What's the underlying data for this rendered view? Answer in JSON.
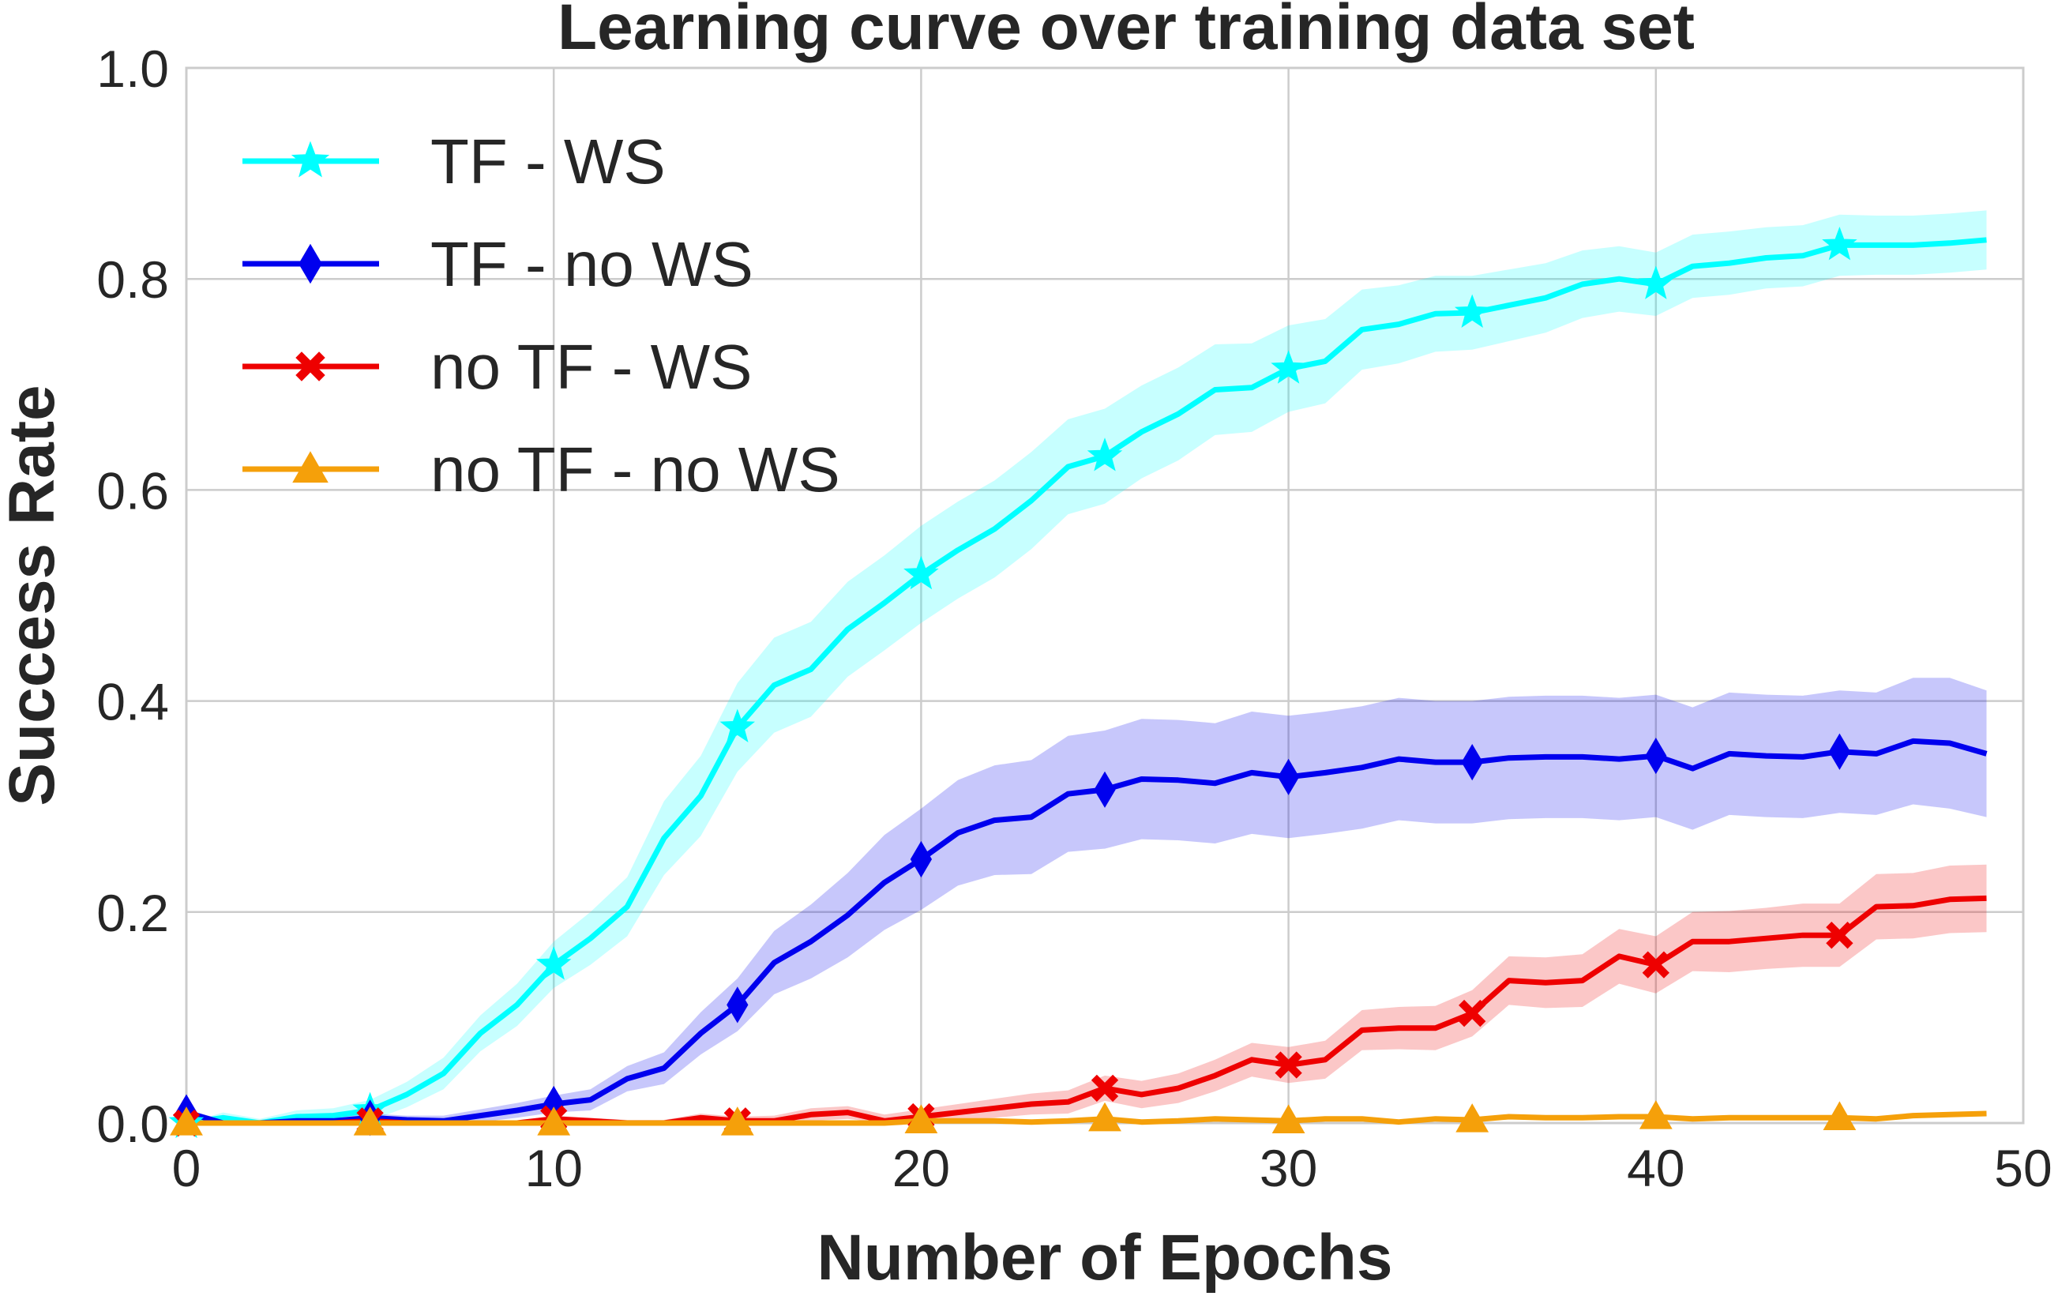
{
  "chart_data": {
    "type": "line",
    "title": "Learning curve over training data set",
    "xlabel": "Number of Epochs",
    "ylabel": "Success Rate",
    "xlim": [
      0,
      50
    ],
    "ylim": [
      0,
      1.0
    ],
    "xticks": [
      "0",
      "10",
      "20",
      "30",
      "40",
      "50"
    ],
    "yticks": [
      "0.0",
      "0.2",
      "0.4",
      "0.6",
      "0.8",
      "1.0"
    ],
    "grid": true,
    "legend_position": "upper-left",
    "x": [
      0,
      1,
      2,
      3,
      4,
      5,
      6,
      7,
      8,
      9,
      10,
      11,
      12,
      13,
      14,
      15,
      16,
      17,
      18,
      19,
      20,
      21,
      22,
      23,
      24,
      25,
      26,
      27,
      28,
      29,
      30,
      31,
      32,
      33,
      34,
      35,
      36,
      37,
      38,
      39,
      40,
      41,
      42,
      43,
      44,
      45,
      46,
      47,
      48,
      49
    ],
    "series": [
      {
        "name": "TF - WS",
        "color": "#00ffff",
        "marker": "star",
        "values": [
          0.0,
          0.005,
          0.0,
          0.006,
          0.007,
          0.012,
          0.027,
          0.047,
          0.085,
          0.112,
          0.15,
          0.175,
          0.205,
          0.27,
          0.31,
          0.375,
          0.415,
          0.43,
          0.468,
          0.493,
          0.52,
          0.543,
          0.563,
          0.59,
          0.622,
          0.632,
          0.655,
          0.672,
          0.695,
          0.697,
          0.715,
          0.722,
          0.752,
          0.757,
          0.767,
          0.768,
          0.775,
          0.782,
          0.795,
          0.8,
          0.795,
          0.812,
          0.815,
          0.82,
          0.822,
          0.832,
          0.832,
          0.832,
          0.834,
          0.837
        ],
        "band": [
          0.0,
          0.005,
          0.004,
          0.006,
          0.007,
          0.01,
          0.012,
          0.015,
          0.017,
          0.02,
          0.022,
          0.025,
          0.028,
          0.035,
          0.038,
          0.042,
          0.045,
          0.045,
          0.045,
          0.045,
          0.046,
          0.046,
          0.046,
          0.046,
          0.045,
          0.045,
          0.044,
          0.044,
          0.043,
          0.042,
          0.041,
          0.04,
          0.038,
          0.037,
          0.036,
          0.035,
          0.034,
          0.033,
          0.032,
          0.031,
          0.03,
          0.03,
          0.03,
          0.029,
          0.029,
          0.029,
          0.028,
          0.028,
          0.028,
          0.028
        ],
        "marker_every": 5
      },
      {
        "name": "TF - no WS",
        "color": "#0000ee",
        "marker": "diamond",
        "values": [
          0.01,
          0.0,
          0.0,
          0.002,
          0.002,
          0.005,
          0.003,
          0.002,
          0.007,
          0.012,
          0.018,
          0.022,
          0.042,
          0.052,
          0.085,
          0.112,
          0.152,
          0.172,
          0.197,
          0.228,
          0.25,
          0.275,
          0.287,
          0.29,
          0.312,
          0.316,
          0.326,
          0.325,
          0.322,
          0.332,
          0.328,
          0.332,
          0.337,
          0.345,
          0.342,
          0.342,
          0.346,
          0.347,
          0.347,
          0.345,
          0.348,
          0.336,
          0.35,
          0.348,
          0.347,
          0.352,
          0.35,
          0.362,
          0.36,
          0.35
        ],
        "band": [
          0.003,
          0.003,
          0.003,
          0.003,
          0.003,
          0.004,
          0.004,
          0.005,
          0.006,
          0.007,
          0.008,
          0.01,
          0.012,
          0.015,
          0.02,
          0.025,
          0.03,
          0.035,
          0.04,
          0.045,
          0.048,
          0.05,
          0.052,
          0.054,
          0.055,
          0.056,
          0.057,
          0.057,
          0.057,
          0.058,
          0.058,
          0.058,
          0.058,
          0.058,
          0.058,
          0.058,
          0.058,
          0.058,
          0.058,
          0.058,
          0.058,
          0.058,
          0.058,
          0.058,
          0.058,
          0.058,
          0.058,
          0.06,
          0.062,
          0.06
        ],
        "marker_every": 5
      },
      {
        "name": "no TF - WS",
        "color": "#ee0000",
        "marker": "x",
        "values": [
          0.0,
          0.0,
          0.0,
          0.0,
          0.0,
          0.002,
          0.0,
          0.0,
          0.0,
          0.0,
          0.004,
          0.002,
          0.0,
          0.0,
          0.005,
          0.002,
          0.002,
          0.008,
          0.01,
          0.002,
          0.006,
          0.01,
          0.014,
          0.018,
          0.02,
          0.033,
          0.027,
          0.033,
          0.045,
          0.06,
          0.055,
          0.06,
          0.088,
          0.09,
          0.09,
          0.104,
          0.135,
          0.133,
          0.135,
          0.158,
          0.15,
          0.172,
          0.172,
          0.175,
          0.178,
          0.178,
          0.205,
          0.206,
          0.212,
          0.213
        ],
        "band": [
          0.0,
          0.0,
          0.0,
          0.0,
          0.0,
          0.002,
          0.002,
          0.002,
          0.002,
          0.002,
          0.003,
          0.003,
          0.003,
          0.003,
          0.004,
          0.004,
          0.005,
          0.006,
          0.006,
          0.006,
          0.007,
          0.008,
          0.009,
          0.01,
          0.011,
          0.012,
          0.013,
          0.014,
          0.015,
          0.016,
          0.017,
          0.018,
          0.019,
          0.02,
          0.021,
          0.022,
          0.023,
          0.024,
          0.025,
          0.026,
          0.027,
          0.028,
          0.029,
          0.029,
          0.03,
          0.03,
          0.031,
          0.031,
          0.032,
          0.032
        ],
        "marker_every": 5
      },
      {
        "name": "no TF - no WS",
        "color": "#f5a00a",
        "marker": "triangle",
        "values": [
          0.0,
          0.0,
          0.0,
          0.0,
          0.0,
          0.0,
          0.0,
          0.0,
          0.0,
          0.0,
          0.0,
          0.0,
          0.0,
          0.0,
          0.0,
          0.0,
          0.0,
          0.0,
          0.0,
          0.0,
          0.002,
          0.002,
          0.002,
          0.001,
          0.002,
          0.004,
          0.001,
          0.002,
          0.004,
          0.003,
          0.002,
          0.004,
          0.004,
          0.001,
          0.004,
          0.003,
          0.006,
          0.005,
          0.005,
          0.006,
          0.006,
          0.004,
          0.005,
          0.005,
          0.005,
          0.005,
          0.004,
          0.007,
          0.008,
          0.009
        ],
        "band": [
          0.0,
          0.0,
          0.0,
          0.0,
          0.0,
          0.0,
          0.0,
          0.0,
          0.0,
          0.0,
          0.0,
          0.0,
          0.0,
          0.0,
          0.0,
          0.0,
          0.0,
          0.0,
          0.0,
          0.0,
          0.002,
          0.002,
          0.002,
          0.002,
          0.002,
          0.002,
          0.002,
          0.002,
          0.002,
          0.002,
          0.002,
          0.002,
          0.002,
          0.002,
          0.002,
          0.002,
          0.002,
          0.002,
          0.002,
          0.002,
          0.002,
          0.002,
          0.002,
          0.002,
          0.002,
          0.002,
          0.002,
          0.002,
          0.002,
          0.002
        ],
        "marker_every": 5
      }
    ]
  }
}
